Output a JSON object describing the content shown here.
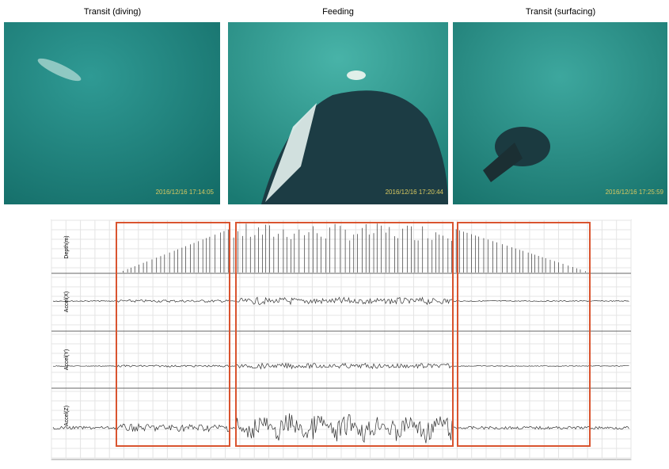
{
  "figure": {
    "photos": [
      {
        "label": "Transit (diving)",
        "timestamp": "2016/12/16 17:14:05"
      },
      {
        "label": "Feeding",
        "timestamp": "2016/12/16 17:20:44"
      },
      {
        "label": "Transit (surfacing)",
        "timestamp": "2016/12/16 17:25:59"
      }
    ],
    "plot": {
      "panels": [
        {
          "label": "Depth(m)"
        },
        {
          "label": "Accel(X)"
        },
        {
          "label": "Accel(Y)"
        },
        {
          "label": "Accel(Z)"
        }
      ]
    }
  }
}
